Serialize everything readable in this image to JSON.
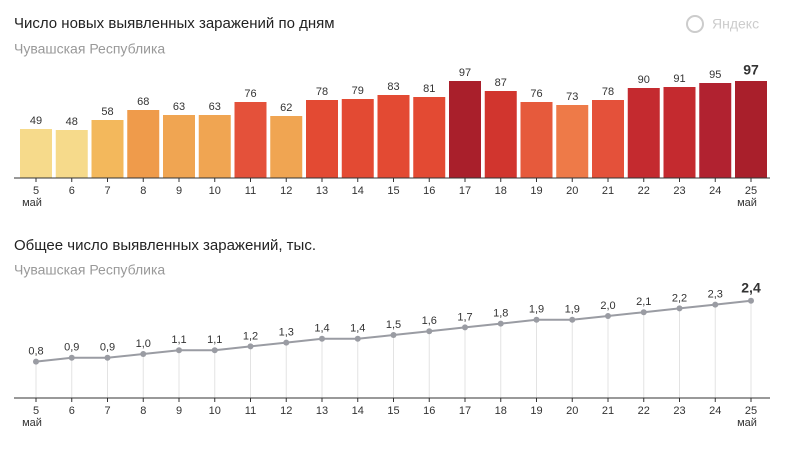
{
  "logo": "Яндекс",
  "chart_data": [
    {
      "type": "bar",
      "title": "Число новых выявленных заражений по дням",
      "subtitle": "Чувашская Республика",
      "categories": [
        "5",
        "6",
        "7",
        "8",
        "9",
        "10",
        "11",
        "12",
        "13",
        "14",
        "15",
        "16",
        "17",
        "18",
        "19",
        "20",
        "21",
        "22",
        "23",
        "24",
        "25"
      ],
      "category_colors": [
        "#333",
        "#333",
        "#333",
        "#333",
        "#d9443a",
        "#d9443a",
        "#333",
        "#333",
        "#333",
        "#333",
        "#333",
        "#d9443a",
        "#d9443a",
        "#333",
        "#333",
        "#333",
        "#333",
        "#333",
        "#d9443a",
        "#d9443a",
        "#333"
      ],
      "month_label": "май",
      "values": [
        49,
        48,
        58,
        68,
        63,
        63,
        76,
        62,
        78,
        79,
        83,
        81,
        97,
        87,
        76,
        73,
        78,
        90,
        91,
        95,
        97
      ],
      "colors": [
        "#f6da8b",
        "#f6da8b",
        "#f3b85c",
        "#ef9b4b",
        "#f0a552",
        "#f0a552",
        "#e4513a",
        "#f0a552",
        "#e34a33",
        "#e34a33",
        "#e34a33",
        "#e34a33",
        "#a91f2b",
        "#d1352e",
        "#e65a3c",
        "#ee7a48",
        "#e4513a",
        "#c42a2f",
        "#c42a2f",
        "#b12230",
        "#a91f2b"
      ],
      "ylim": [
        0,
        100
      ]
    },
    {
      "type": "line",
      "title": "Общее число выявленных заражений, тыс.",
      "subtitle": "Чувашская Республика",
      "categories": [
        "5",
        "6",
        "7",
        "8",
        "9",
        "10",
        "11",
        "12",
        "13",
        "14",
        "15",
        "16",
        "17",
        "18",
        "19",
        "20",
        "21",
        "22",
        "23",
        "24",
        "25"
      ],
      "category_colors": [
        "#333",
        "#333",
        "#333",
        "#333",
        "#d9443a",
        "#d9443a",
        "#333",
        "#333",
        "#333",
        "#333",
        "#333",
        "#d9443a",
        "#d9443a",
        "#333",
        "#333",
        "#333",
        "#333",
        "#333",
        "#d9443a",
        "#d9443a",
        "#333"
      ],
      "month_label": "май",
      "values": [
        0.8,
        0.9,
        0.9,
        1.0,
        1.1,
        1.1,
        1.2,
        1.3,
        1.4,
        1.4,
        1.5,
        1.6,
        1.7,
        1.8,
        1.9,
        1.9,
        2.0,
        2.1,
        2.2,
        2.3,
        2.4
      ],
      "value_labels": [
        "0,8",
        "0,9",
        "0,9",
        "1,0",
        "1,1",
        "1,1",
        "1,2",
        "1,3",
        "1,4",
        "1,4",
        "1,5",
        "1,6",
        "1,7",
        "1,8",
        "1,9",
        "1,9",
        "2,0",
        "2,1",
        "2,2",
        "2,3",
        "2,4"
      ],
      "color": "#9a9ca3",
      "ylim": [
        0,
        2.5
      ]
    }
  ]
}
